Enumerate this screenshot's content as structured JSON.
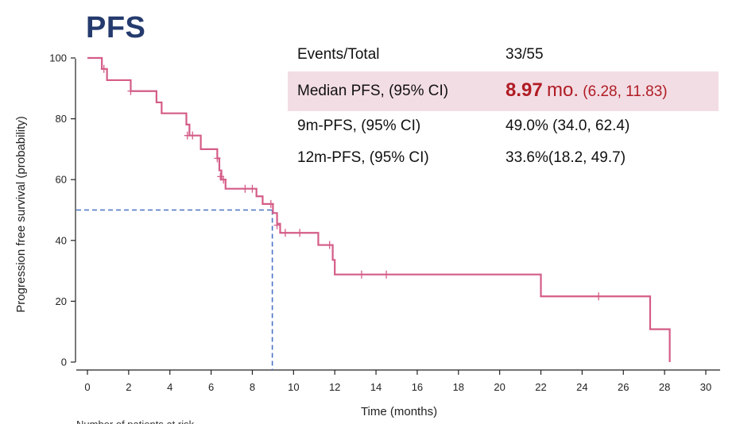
{
  "title": "PFS",
  "stats": {
    "events_label": "Events/Total",
    "events_value": "33/55",
    "median_label": "Median PFS, (95% CI)",
    "median_value": "8.97",
    "median_unit": "mo.",
    "median_ci": "(6.28, 11.83)",
    "pfs9_label": "9m-PFS,  (95% CI)",
    "pfs9_value": "49.0% (34.0, 62.4)",
    "pfs12_label": "12m-PFS,  (95% CI)",
    "pfs12_value": "33.6%(18.2, 49.7)"
  },
  "footer_text": "Number of patients at risk",
  "colors": {
    "curve": "#d45c87",
    "reference": "#4a72c4",
    "highlight": "#f3dde4",
    "median": "#b01c24"
  },
  "chart_data": {
    "type": "line",
    "title": "PFS",
    "xlabel": "Time (months)",
    "ylabel": "Progression free survival (probability)",
    "xlim": [
      0,
      30
    ],
    "ylim": [
      0,
      100
    ],
    "xticks": [
      0,
      2,
      4,
      6,
      8,
      10,
      12,
      14,
      16,
      18,
      20,
      22,
      24,
      26,
      28,
      30
    ],
    "yticks": [
      0,
      20,
      40,
      60,
      80,
      100
    ],
    "series": [
      {
        "name": "PFS",
        "step": [
          [
            0,
            100
          ],
          [
            0.7,
            96.4
          ],
          [
            0.95,
            92.7
          ],
          [
            2.0,
            92.7
          ],
          [
            2.1,
            89.1
          ],
          [
            3.2,
            89.1
          ],
          [
            3.35,
            85.4
          ],
          [
            3.6,
            81.8
          ],
          [
            4.7,
            81.8
          ],
          [
            4.8,
            78.1
          ],
          [
            4.95,
            74.5
          ],
          [
            5.4,
            74.5
          ],
          [
            5.5,
            70.0
          ],
          [
            6.2,
            70.0
          ],
          [
            6.3,
            67.0
          ],
          [
            6.4,
            63.0
          ],
          [
            6.5,
            60.0
          ],
          [
            6.7,
            57.0
          ],
          [
            8.0,
            57.0
          ],
          [
            8.2,
            54.5
          ],
          [
            8.5,
            52.0
          ],
          [
            8.97,
            52.0
          ],
          [
            9.0,
            49.0
          ],
          [
            9.2,
            45.5
          ],
          [
            9.35,
            42.5
          ],
          [
            11.1,
            42.5
          ],
          [
            11.2,
            38.5
          ],
          [
            11.8,
            38.5
          ],
          [
            11.9,
            33.6
          ],
          [
            12.0,
            28.8
          ],
          [
            21.9,
            28.8
          ],
          [
            22.0,
            21.6
          ],
          [
            27.2,
            21.6
          ],
          [
            27.3,
            10.8
          ],
          [
            28.2,
            10.8
          ],
          [
            28.25,
            0
          ]
        ],
        "censored": [
          [
            0.8,
            96.4
          ],
          [
            2.1,
            89.1
          ],
          [
            4.85,
            74.5
          ],
          [
            5.1,
            74.5
          ],
          [
            6.3,
            67.0
          ],
          [
            6.45,
            61.0
          ],
          [
            6.6,
            60.0
          ],
          [
            7.65,
            57.0
          ],
          [
            8.0,
            57.0
          ],
          [
            8.9,
            52.0
          ],
          [
            9.2,
            45.0
          ],
          [
            9.6,
            42.5
          ],
          [
            10.3,
            42.5
          ],
          [
            11.75,
            38.5
          ],
          [
            13.3,
            28.8
          ],
          [
            14.5,
            28.8
          ],
          [
            24.8,
            21.6
          ]
        ]
      }
    ],
    "reference": {
      "median_time": 8.97,
      "survival": 50
    }
  }
}
